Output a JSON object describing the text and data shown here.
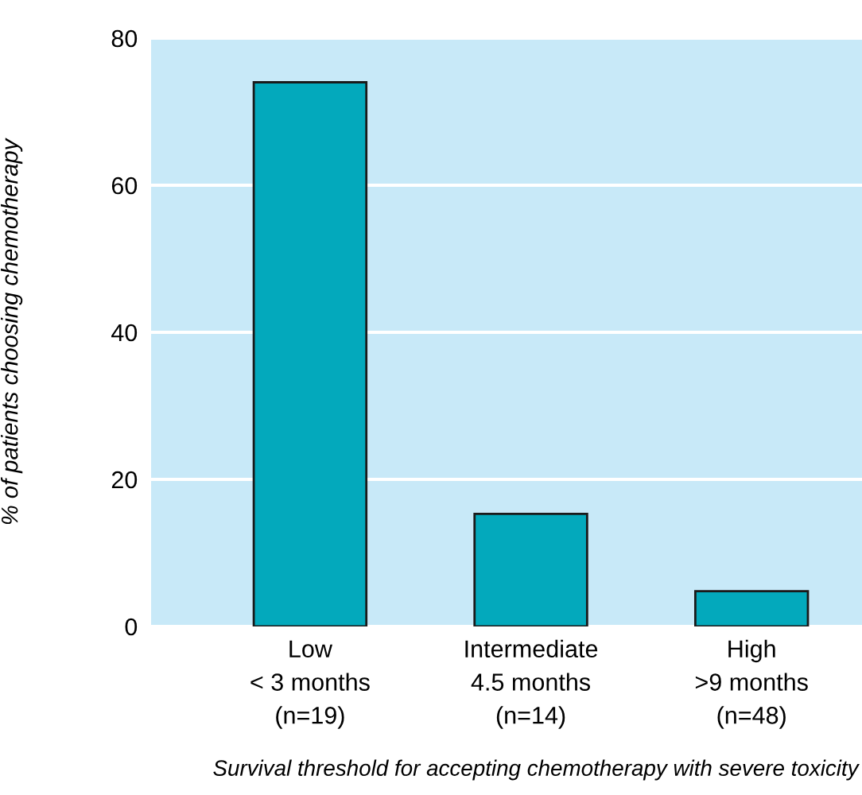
{
  "chart_data": {
    "type": "bar",
    "categories": [
      "Low\n< 3 months\n(n=19)",
      "Intermediate\n4.5 months\n(n=14)",
      "High\n>9 months\n(n=48)"
    ],
    "values": [
      74,
      15.3,
      4.8
    ],
    "color": "#03a9bc",
    "ylim": [
      0,
      80
    ],
    "yticks": [
      0,
      20,
      40,
      60,
      80
    ],
    "grid": "y",
    "xlabel": "Survival threshold for accepting chemotherapy with severe toxicity",
    "ylabel": "% of patients choosing chemotherapy"
  }
}
